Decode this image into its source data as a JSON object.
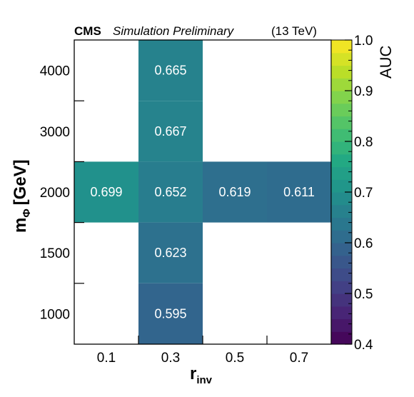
{
  "header": {
    "experiment": "CMS",
    "status": "Simulation Preliminary",
    "energy": "(13 TeV)"
  },
  "axes": {
    "x_title_main": "r",
    "x_title_sub": "inv",
    "y_title_main": "m",
    "y_title_sub": "Φ",
    "y_title_unit": "[GeV]"
  },
  "colorbar": {
    "title": "AUC",
    "range": [
      0.4,
      1.0
    ],
    "ticks": [
      "0.4",
      "0.5",
      "0.6",
      "0.7",
      "0.8",
      "0.9",
      "1.0"
    ]
  },
  "chart_data": {
    "type": "heatmap",
    "x_categories": [
      "0.1",
      "0.3",
      "0.5",
      "0.7"
    ],
    "y_categories": [
      "1000",
      "1500",
      "2000",
      "3000",
      "4000"
    ],
    "z_range": [
      0.4,
      1.0
    ],
    "colormap": "viridis",
    "cells": [
      {
        "x": "0.3",
        "y": "4000",
        "value": 0.665,
        "label": "0.665"
      },
      {
        "x": "0.3",
        "y": "3000",
        "value": 0.667,
        "label": "0.667"
      },
      {
        "x": "0.1",
        "y": "2000",
        "value": 0.699,
        "label": "0.699"
      },
      {
        "x": "0.3",
        "y": "2000",
        "value": 0.652,
        "label": "0.652"
      },
      {
        "x": "0.5",
        "y": "2000",
        "value": 0.619,
        "label": "0.619"
      },
      {
        "x": "0.7",
        "y": "2000",
        "value": 0.611,
        "label": "0.611"
      },
      {
        "x": "0.3",
        "y": "1500",
        "value": 0.623,
        "label": "0.623"
      },
      {
        "x": "0.3",
        "y": "1000",
        "value": 0.595,
        "label": "0.595"
      }
    ]
  }
}
